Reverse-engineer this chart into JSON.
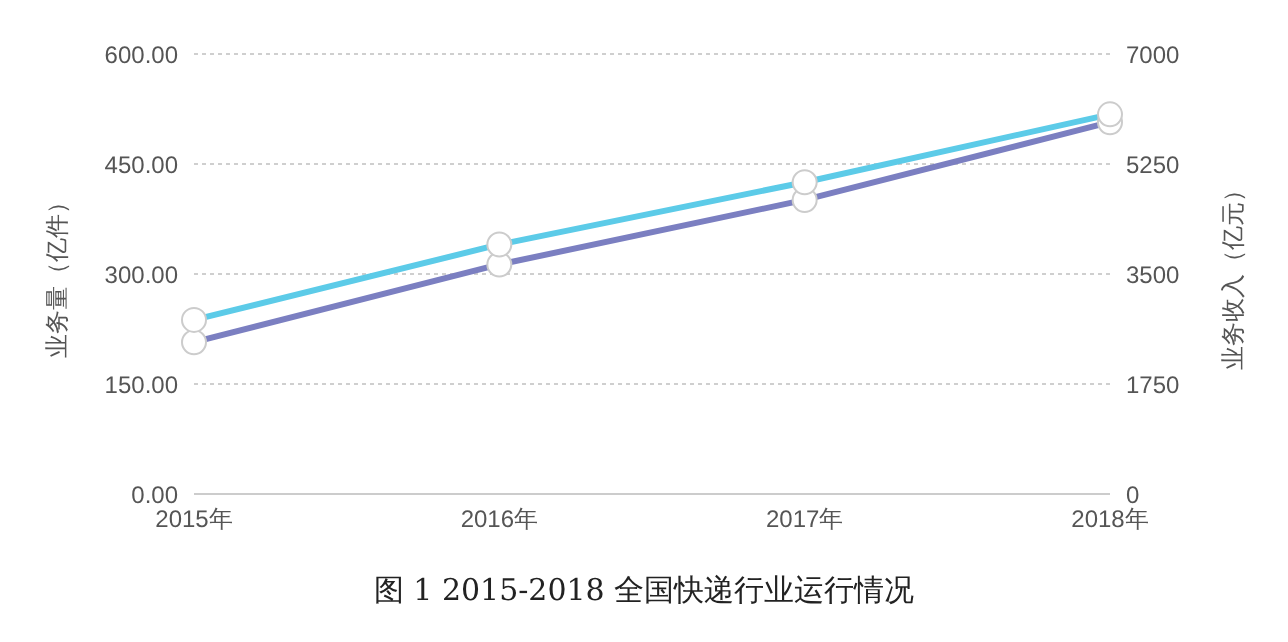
{
  "chart_data": {
    "type": "line",
    "title": "图 1 2015-2018 全国快递行业运行情况",
    "categories": [
      "2015年",
      "2016年",
      "2017年",
      "2018年"
    ],
    "ylabel": "业务量（亿件）",
    "y2label": "业务收入（亿元）",
    "series": [
      {
        "color": "#7b7fc1",
        "values": [
          207,
          313,
          401,
          507
        ]
      },
      {
        "color": "#5ccbe8",
        "axis": "y2",
        "values": [
          2770,
          3970,
          4960,
          6040
        ]
      }
    ],
    "ylim": [
      0,
      600
    ],
    "yticks": [
      {
        "value": 0,
        "label": "0.00"
      },
      {
        "value": 150,
        "label": "150.00"
      },
      {
        "value": 300,
        "label": "300.00"
      },
      {
        "value": 450,
        "label": "450.00"
      },
      {
        "value": 600,
        "label": "600.00"
      }
    ],
    "y2lim": [
      0,
      7000
    ],
    "y2ticks": [
      0,
      1750,
      3500,
      5250,
      7000
    ],
    "grid": "y",
    "marker": "circle",
    "line_style": "solid",
    "legend": false
  }
}
